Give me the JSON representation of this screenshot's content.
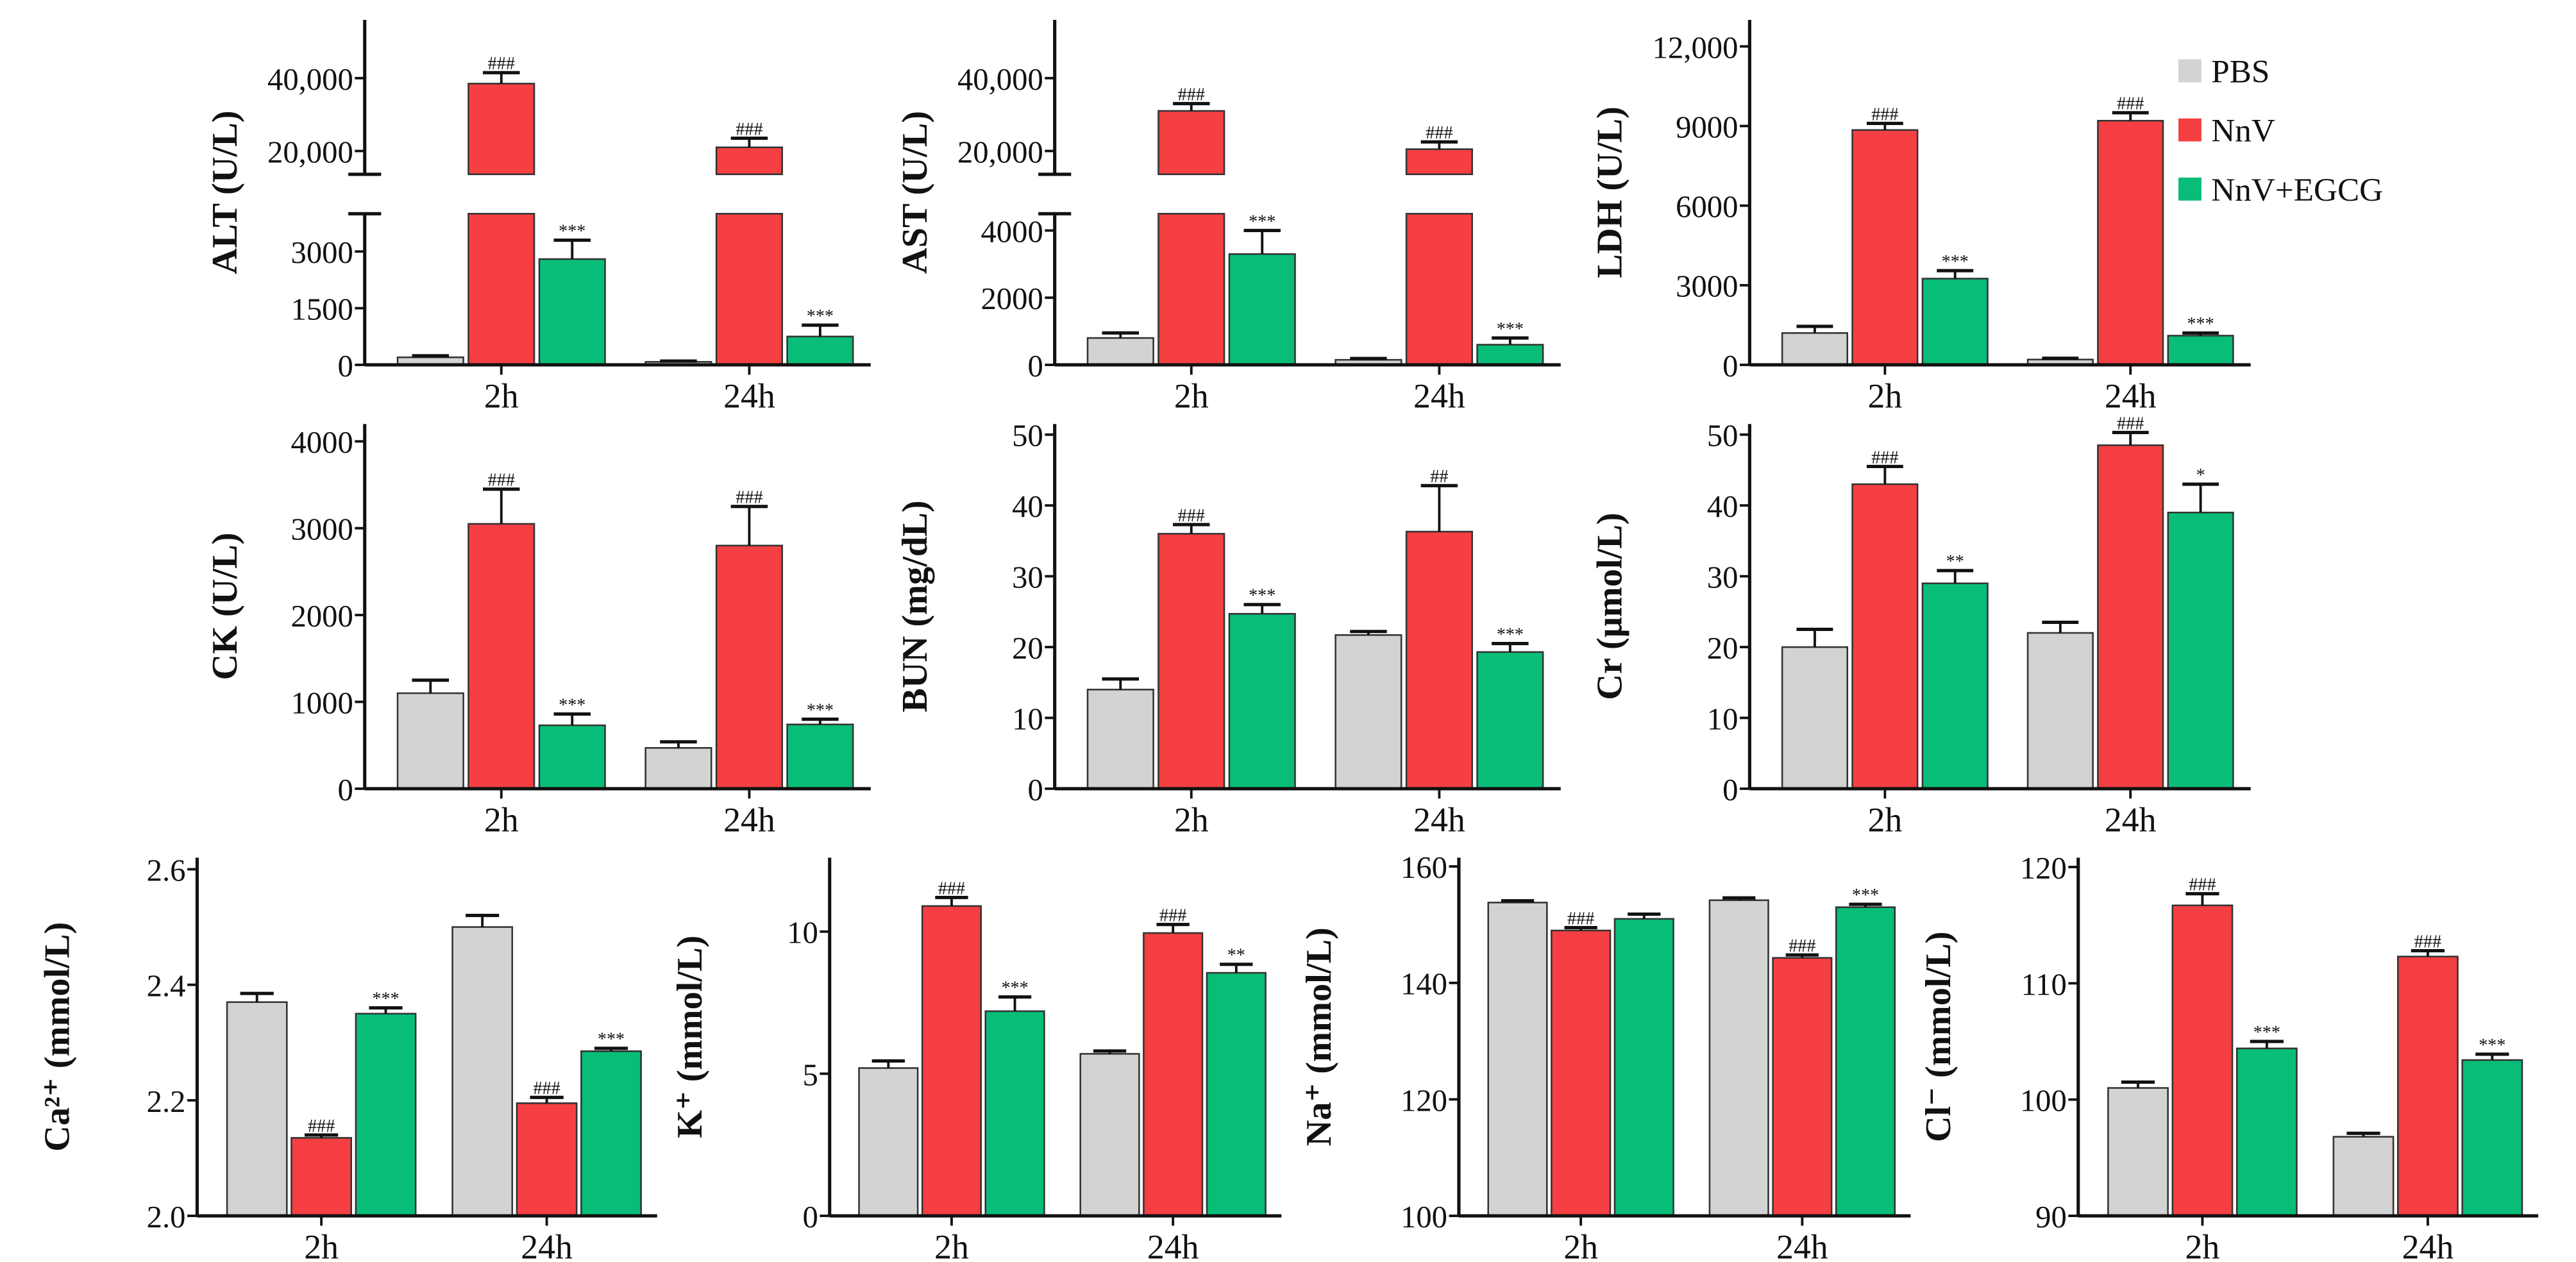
{
  "legend": [
    {
      "name": "PBS",
      "color": "#d3d3d3"
    },
    {
      "name": "NnV",
      "color": "#f53f42"
    },
    {
      "name": "NnV+EGCG",
      "color": "#08bd77"
    }
  ],
  "chart_data": [
    {
      "type": "bar",
      "ylabel": "ALT (U/L)",
      "categories": [
        "2h",
        "24h"
      ],
      "broken_axis": {
        "lower": [
          0,
          4000
        ],
        "upper": [
          13600,
          56000
        ]
      },
      "yticks": [
        {
          "v": 0,
          "label": "0"
        },
        {
          "v": 1500,
          "label": "1500"
        },
        {
          "v": 3000,
          "label": "3000"
        },
        {
          "v": 20000,
          "label": "20,000"
        },
        {
          "v": 40000,
          "label": "40,000"
        }
      ],
      "series": [
        {
          "name": "PBS",
          "values": [
            200,
            80
          ],
          "errors": [
            40,
            20
          ],
          "sig": [
            "",
            ""
          ]
        },
        {
          "name": "NnV",
          "values": [
            38500,
            21000
          ],
          "errors": [
            3000,
            2500
          ],
          "sig": [
            "###",
            "###"
          ]
        },
        {
          "name": "NnV+EGCG",
          "values": [
            2800,
            750
          ],
          "errors": [
            500,
            300
          ],
          "sig": [
            "***",
            "***"
          ]
        }
      ]
    },
    {
      "type": "bar",
      "ylabel": "AST (U/L)",
      "categories": [
        "2h",
        "24h"
      ],
      "broken_axis": {
        "lower": [
          0,
          4500
        ],
        "upper": [
          13600,
          56000
        ]
      },
      "yticks": [
        {
          "v": 0,
          "label": "0"
        },
        {
          "v": 2000,
          "label": "2000"
        },
        {
          "v": 4000,
          "label": "4000"
        },
        {
          "v": 20000,
          "label": "20,000"
        },
        {
          "v": 40000,
          "label": "40,000"
        }
      ],
      "series": [
        {
          "name": "PBS",
          "values": [
            800,
            150
          ],
          "errors": [
            150,
            40
          ],
          "sig": [
            "",
            ""
          ]
        },
        {
          "name": "NnV",
          "values": [
            31000,
            20500
          ],
          "errors": [
            2000,
            2000
          ],
          "sig": [
            "###",
            "###"
          ]
        },
        {
          "name": "NnV+EGCG",
          "values": [
            3300,
            600
          ],
          "errors": [
            700,
            200
          ],
          "sig": [
            "***",
            "***"
          ]
        }
      ]
    },
    {
      "type": "bar",
      "ylabel": "LDH (U/L)",
      "categories": [
        "2h",
        "24h"
      ],
      "ylim": [
        0,
        13000
      ],
      "yticks": [
        {
          "v": 0,
          "label": "0"
        },
        {
          "v": 3000,
          "label": "3000"
        },
        {
          "v": 6000,
          "label": "6000"
        },
        {
          "v": 9000,
          "label": "9000"
        },
        {
          "v": 12000,
          "label": "12,000"
        }
      ],
      "series": [
        {
          "name": "PBS",
          "values": [
            1200,
            200
          ],
          "errors": [
            250,
            50
          ],
          "sig": [
            "",
            ""
          ]
        },
        {
          "name": "NnV",
          "values": [
            8850,
            9200
          ],
          "errors": [
            250,
            300
          ],
          "sig": [
            "###",
            "###"
          ]
        },
        {
          "name": "NnV+EGCG",
          "values": [
            3250,
            1100
          ],
          "errors": [
            300,
            100
          ],
          "sig": [
            "***",
            "***"
          ]
        }
      ]
    },
    {
      "type": "bar",
      "ylabel": "CK (U/L)",
      "categories": [
        "2h",
        "24h"
      ],
      "ylim": [
        0,
        4200
      ],
      "yticks": [
        {
          "v": 0,
          "label": "0"
        },
        {
          "v": 1000,
          "label": "1000"
        },
        {
          "v": 2000,
          "label": "2000"
        },
        {
          "v": 3000,
          "label": "3000"
        },
        {
          "v": 4000,
          "label": "4000"
        }
      ],
      "series": [
        {
          "name": "PBS",
          "values": [
            1100,
            470
          ],
          "errors": [
            150,
            70
          ],
          "sig": [
            "",
            ""
          ]
        },
        {
          "name": "NnV",
          "values": [
            3050,
            2800
          ],
          "errors": [
            400,
            450
          ],
          "sig": [
            "###",
            "###"
          ]
        },
        {
          "name": "NnV+EGCG",
          "values": [
            730,
            740
          ],
          "errors": [
            130,
            60
          ],
          "sig": [
            "***",
            "***"
          ]
        }
      ]
    },
    {
      "type": "bar",
      "ylabel": "BUN (mg/dL)",
      "categories": [
        "2h",
        "24h"
      ],
      "ylim": [
        0,
        51.5
      ],
      "yticks": [
        {
          "v": 0,
          "label": "0"
        },
        {
          "v": 10,
          "label": "10"
        },
        {
          "v": 20,
          "label": "20"
        },
        {
          "v": 30,
          "label": "30"
        },
        {
          "v": 40,
          "label": "40"
        },
        {
          "v": 50,
          "label": "50"
        }
      ],
      "series": [
        {
          "name": "PBS",
          "values": [
            14,
            21.7
          ],
          "errors": [
            1.5,
            0.5
          ],
          "sig": [
            "",
            ""
          ]
        },
        {
          "name": "NnV",
          "values": [
            36,
            36.3
          ],
          "errors": [
            1.3,
            6.5
          ],
          "sig": [
            "###",
            "##"
          ]
        },
        {
          "name": "NnV+EGCG",
          "values": [
            24.7,
            19.3
          ],
          "errors": [
            1.3,
            1.2
          ],
          "sig": [
            "***",
            "***"
          ]
        }
      ]
    },
    {
      "type": "bar",
      "ylabel": "Cr (μmol/L)",
      "categories": [
        "2h",
        "24h"
      ],
      "ylim": [
        0,
        51.5
      ],
      "yticks": [
        {
          "v": 0,
          "label": "0"
        },
        {
          "v": 10,
          "label": "10"
        },
        {
          "v": 20,
          "label": "20"
        },
        {
          "v": 30,
          "label": "30"
        },
        {
          "v": 40,
          "label": "40"
        },
        {
          "v": 50,
          "label": "50"
        }
      ],
      "series": [
        {
          "name": "PBS",
          "values": [
            20,
            22
          ],
          "errors": [
            2.5,
            1.5
          ],
          "sig": [
            "",
            ""
          ]
        },
        {
          "name": "NnV",
          "values": [
            43,
            48.5
          ],
          "errors": [
            2.5,
            1.8
          ],
          "sig": [
            "###",
            "###"
          ]
        },
        {
          "name": "NnV+EGCG",
          "values": [
            29,
            39
          ],
          "errors": [
            1.8,
            4
          ],
          "sig": [
            "**",
            "*"
          ]
        }
      ]
    },
    {
      "type": "bar",
      "ylabel": "Ca²⁺ (mmol/L)",
      "categories": [
        "2h",
        "24h"
      ],
      "ylim": [
        2.0,
        2.62
      ],
      "yticks": [
        {
          "v": 2.0,
          "label": "2.0"
        },
        {
          "v": 2.2,
          "label": "2.2"
        },
        {
          "v": 2.4,
          "label": "2.4"
        },
        {
          "v": 2.6,
          "label": "2.6"
        }
      ],
      "series": [
        {
          "name": "PBS",
          "values": [
            2.37,
            2.5
          ],
          "errors": [
            0.015,
            0.02
          ],
          "sig": [
            "",
            ""
          ]
        },
        {
          "name": "NnV",
          "values": [
            2.135,
            2.195
          ],
          "errors": [
            0.005,
            0.01
          ],
          "sig": [
            "###",
            "###"
          ]
        },
        {
          "name": "NnV+EGCG",
          "values": [
            2.35,
            2.285
          ],
          "errors": [
            0.01,
            0.005
          ],
          "sig": [
            "***",
            "***"
          ]
        }
      ]
    },
    {
      "type": "bar",
      "ylabel": "K⁺ (mmol/L)",
      "categories": [
        "2h",
        "24h"
      ],
      "ylim": [
        0,
        12.6
      ],
      "yticks": [
        {
          "v": 0,
          "label": "0"
        },
        {
          "v": 5,
          "label": "5"
        },
        {
          "v": 10,
          "label": "10"
        }
      ],
      "series": [
        {
          "name": "PBS",
          "values": [
            5.2,
            5.7
          ],
          "errors": [
            0.25,
            0.1
          ],
          "sig": [
            "",
            ""
          ]
        },
        {
          "name": "NnV",
          "values": [
            10.9,
            9.95
          ],
          "errors": [
            0.3,
            0.3
          ],
          "sig": [
            "###",
            "###"
          ]
        },
        {
          "name": "NnV+EGCG",
          "values": [
            7.2,
            8.55
          ],
          "errors": [
            0.5,
            0.3
          ],
          "sig": [
            "***",
            "**"
          ]
        }
      ]
    },
    {
      "type": "bar",
      "ylabel": "Na⁺ (mmol/L)",
      "categories": [
        "2h",
        "24h"
      ],
      "ylim": [
        100,
        161.5
      ],
      "yticks": [
        {
          "v": 100,
          "label": "100"
        },
        {
          "v": 120,
          "label": "120"
        },
        {
          "v": 140,
          "label": "140"
        },
        {
          "v": 160,
          "label": "160"
        }
      ],
      "series": [
        {
          "name": "PBS",
          "values": [
            153.8,
            154.2
          ],
          "errors": [
            0.3,
            0.4
          ],
          "sig": [
            "",
            ""
          ]
        },
        {
          "name": "NnV",
          "values": [
            149,
            144.3
          ],
          "errors": [
            0.5,
            0.5
          ],
          "sig": [
            "###",
            "###"
          ]
        },
        {
          "name": "NnV+EGCG",
          "values": [
            151,
            153
          ],
          "errors": [
            0.8,
            0.5
          ],
          "sig": [
            "",
            "***"
          ]
        }
      ]
    },
    {
      "type": "bar",
      "ylabel": "Cl⁻ (mmol/L)",
      "categories": [
        "2h",
        "24h"
      ],
      "ylim": [
        90,
        120.8
      ],
      "yticks": [
        {
          "v": 90,
          "label": "90"
        },
        {
          "v": 100,
          "label": "100"
        },
        {
          "v": 110,
          "label": "110"
        },
        {
          "v": 120,
          "label": "120"
        }
      ],
      "series": [
        {
          "name": "PBS",
          "values": [
            101,
            96.8
          ],
          "errors": [
            0.5,
            0.3
          ],
          "sig": [
            "",
            ""
          ]
        },
        {
          "name": "NnV",
          "values": [
            116.7,
            112.3
          ],
          "errors": [
            1,
            0.5
          ],
          "sig": [
            "###",
            "###"
          ]
        },
        {
          "name": "NnV+EGCG",
          "values": [
            104.4,
            103.4
          ],
          "errors": [
            0.6,
            0.5
          ],
          "sig": [
            "***",
            "***"
          ]
        }
      ]
    }
  ]
}
